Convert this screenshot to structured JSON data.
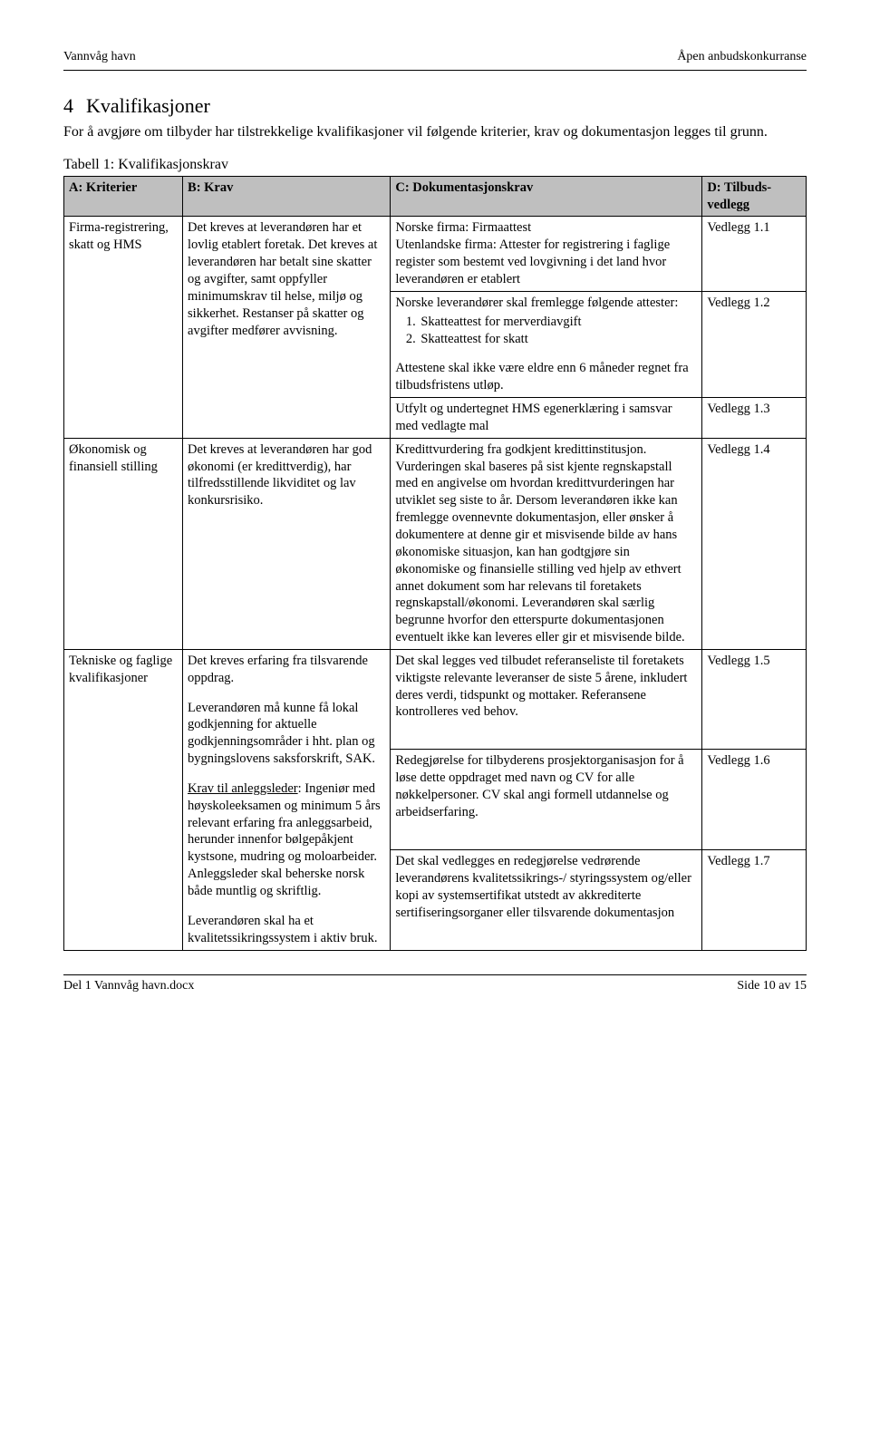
{
  "header": {
    "left": "Vannvåg havn",
    "right": "Åpen anbudskonkurranse"
  },
  "section": {
    "number": "4",
    "title": "Kvalifikasjoner"
  },
  "intro": "For å avgjøre om tilbyder har tilstrekkelige kvalifikasjoner vil følgende kriterier, krav og dokumentasjon legges til grunn.",
  "table_caption": "Tabell 1: Kvalifikasjonskrav",
  "table": {
    "headers": {
      "a": "A: Kriterier",
      "b": "B: Krav",
      "c": "C: Dokumentasjonskrav",
      "d": "D: Tilbuds-vedlegg"
    },
    "row1": {
      "a": "Firma-registrering, skatt og HMS",
      "b": "Det kreves at leverandøren har et lovlig etablert foretak. Det kreves at leverandøren har betalt sine skatter og avgifter, samt oppfyller minimumskrav til helse, miljø og sikkerhet. Restanser på skatter og avgifter medfører avvisning.",
      "c1": "Norske firma: Firmaattest\nUtenlandske firma: Attester for registrering i faglige register som bestemt ved lovgivning i det land hvor leverandøren er etablert",
      "d1": "Vedlegg 1.1",
      "c2_intro": "Norske leverandører skal fremlegge følgende attester:",
      "c2_li1": "Skatteattest for merverdiavgift",
      "c2_li2": "Skatteattest for skatt",
      "c2_post": "Attestene skal ikke være eldre enn 6 måneder regnet fra tilbudsfristens utløp.",
      "d2": "Vedlegg 1.2",
      "c3": "Utfylt og undertegnet HMS egenerklæring i samsvar med vedlagte mal",
      "d3": "Vedlegg 1.3"
    },
    "row2": {
      "a": "Økonomisk og finansiell stilling",
      "b": "Det kreves at leverandøren har god økonomi (er kredittverdig), har tilfredsstillende likviditet og lav konkursrisiko.",
      "c": "Kredittvurdering fra godkjent kredittinstitusjon. Vurderingen skal baseres på sist kjente regnskapstall med en angivelse om hvordan kredittvurderingen har utviklet seg siste to år. Dersom leverandøren ikke kan fremlegge ovennevnte dokumentasjon, eller ønsker å dokumentere at denne gir et misvisende bilde av hans økonomiske situasjon, kan han godtgjøre sin økonomiske og finansielle stilling ved hjelp av ethvert annet dokument som har relevans til foretakets regnskapstall/økonomi. Leverandøren skal særlig begrunne hvorfor den etterspurte dokumentasjonen eventuelt ikke kan leveres eller gir et misvisende bilde.",
      "d": "Vedlegg 1.4"
    },
    "row3": {
      "a": "Tekniske og faglige kvalifikasjoner",
      "b_p1": "Det kreves erfaring fra tilsvarende oppdrag.",
      "b_p2": "Leverandøren må kunne få lokal godkjenning for aktuelle godkjenningsområder i hht. plan og bygningslovens saksforskrift, SAK.",
      "b_p3_label": "Krav til anleggsleder",
      "b_p3_rest": ": Ingeniør med høyskoleeksamen og minimum 5 års relevant erfaring fra anleggsarbeid, herunder innenfor bølgepåkjent kystsone, mudring og moloarbeider. Anleggsleder skal beherske norsk både muntlig og skriftlig.",
      "b_p4": "Leverandøren skal ha et kvalitetssikringssystem i aktiv bruk.",
      "c1": "Det skal legges ved tilbudet referanseliste til foretakets viktigste relevante leveranser de siste 5 årene, inkludert deres verdi, tidspunkt og mottaker. Referansene kontrolleres ved behov.",
      "d1": "Vedlegg 1.5",
      "c2": "Redegjørelse for tilbyderens prosjektorganisasjon for å løse dette oppdraget med navn og CV for alle nøkkelpersoner. CV skal angi formell utdannelse og arbeidserfaring.",
      "d2": "Vedlegg 1.6",
      "c3": "Det skal vedlegges en redegjørelse vedrørende leverandørens kvalitetssikrings-/ styringssystem og/eller kopi av systemsertifikat utstedt av akkrediterte sertifiseringsorganer eller tilsvarende dokumentasjon",
      "d3": "Vedlegg 1.7"
    }
  },
  "footer": {
    "left": "Del 1 Vannvåg havn.docx",
    "right": "Side 10 av 15"
  }
}
